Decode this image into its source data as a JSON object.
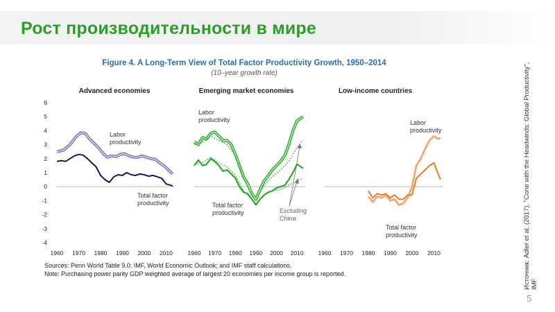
{
  "slide": {
    "title": "Рост производительности в мире",
    "page_number": "5",
    "source_note": "Источник: Adler et al. (2017). \"Cone with the Headwinds: Global Productivity\", IMF"
  },
  "figure": {
    "title": "Figure 4. A Long-Term View of Total Factor Productivity Growth, 1950–2014",
    "subtitle": "(10–year growth rate)",
    "sources": "Sources: Penn World Table 9.0; IMF, World Economic Outlook; and IMF staff calculations.",
    "note": "Note: Purchasing power parity GDP weighted average of largest 20 economies per income group is reported."
  },
  "colors": {
    "title_green": "#2e9e2b",
    "figure_title_blue": "#2d6cb5",
    "advanced_labor": "#7b73b3",
    "advanced_tfp": "#1a1466",
    "emerging": "#2ea82e",
    "lowincome_labor": "#f4a671",
    "lowincome_tfp": "#ea7a26"
  },
  "chart_data": [
    {
      "type": "line",
      "title": "Advanced economies",
      "x_ticks": [
        "1960",
        "1970",
        "1980",
        "1990",
        "2000",
        "2010"
      ],
      "y_ticks": [
        "6",
        "5",
        "4",
        "3",
        "2",
        "1",
        "0",
        "-1",
        "-2",
        "-3",
        "-4"
      ],
      "xlim": [
        1960,
        2014
      ],
      "ylim": [
        -4,
        6
      ],
      "series": [
        {
          "name": "Labor productivity",
          "x": [
            1960,
            1963,
            1966,
            1969,
            1971,
            1973,
            1975,
            1977,
            1979,
            1981,
            1983,
            1985,
            1987,
            1989,
            1991,
            1993,
            1995,
            1997,
            1999,
            2001,
            2003,
            2005,
            2007,
            2009,
            2011,
            2013
          ],
          "y": [
            2.5,
            2.6,
            3.0,
            3.6,
            3.85,
            3.8,
            3.4,
            3.1,
            2.8,
            2.4,
            2.1,
            2.2,
            2.15,
            2.3,
            2.35,
            2.2,
            2.1,
            2.1,
            2.2,
            2.1,
            2.0,
            1.95,
            1.7,
            1.5,
            1.2,
            0.9
          ]
        },
        {
          "name": "Total factor productivity",
          "x": [
            1960,
            1962,
            1964,
            1966,
            1968,
            1970,
            1972,
            1974,
            1976,
            1978,
            1980,
            1982,
            1984,
            1986,
            1988,
            1990,
            1992,
            1994,
            1996,
            1998,
            2000,
            2002,
            2004,
            2006,
            2008,
            2010,
            2013
          ],
          "y": [
            1.8,
            1.85,
            1.8,
            2.0,
            2.2,
            2.3,
            2.25,
            2.0,
            1.7,
            1.4,
            0.8,
            0.5,
            0.3,
            0.7,
            0.85,
            0.8,
            1.0,
            0.85,
            0.8,
            0.9,
            0.85,
            0.75,
            0.8,
            0.7,
            0.6,
            0.2,
            0.05
          ]
        }
      ]
    },
    {
      "type": "line",
      "title": "Emerging market economies",
      "x_ticks": [
        "1960",
        "1970",
        "1980",
        "1990",
        "2000",
        "2010"
      ],
      "xlim": [
        1960,
        2014
      ],
      "ylim": [
        -4,
        6
      ],
      "series": [
        {
          "name": "Labor productivity",
          "x": [
            1960,
            1962,
            1964,
            1966,
            1968,
            1970,
            1972,
            1974,
            1976,
            1978,
            1980,
            1982,
            1984,
            1986,
            1988,
            1990,
            1992,
            1994,
            1996,
            1998,
            2000,
            2002,
            2004,
            2006,
            2008,
            2010,
            2013
          ],
          "y": [
            3.2,
            3.0,
            3.5,
            3.4,
            3.8,
            3.9,
            3.6,
            3.3,
            3.3,
            3.0,
            2.3,
            1.5,
            0.7,
            0.2,
            -0.5,
            -0.9,
            -0.2,
            0.4,
            0.8,
            1.2,
            1.5,
            1.8,
            2.2,
            3.0,
            4.0,
            4.7,
            5.0
          ]
        },
        {
          "name": "Total factor productivity",
          "x": [
            1960,
            1962,
            1964,
            1966,
            1968,
            1970,
            1972,
            1974,
            1976,
            1978,
            1980,
            1982,
            1984,
            1986,
            1988,
            1990,
            1992,
            1994,
            1996,
            1998,
            2000,
            2002,
            2004,
            2006,
            2008,
            2010,
            2013
          ],
          "y": [
            1.5,
            1.9,
            1.5,
            1.6,
            2.0,
            1.8,
            1.5,
            1.1,
            1.2,
            0.9,
            0.6,
            0.0,
            -0.4,
            -0.5,
            -0.9,
            -1.3,
            -0.9,
            -0.6,
            -0.4,
            -0.3,
            -0.1,
            0.0,
            0.1,
            0.5,
            1.0,
            1.6,
            1.3
          ]
        },
        {
          "name": "Excluding China (labor productivity)",
          "x": [
            1960,
            1964,
            1968,
            1972,
            1976,
            1980,
            1984,
            1988,
            1990,
            1994,
            1998,
            2002,
            2006,
            2010,
            2013
          ],
          "y": [
            3.0,
            3.2,
            3.6,
            3.3,
            3.0,
            2.2,
            0.6,
            -0.6,
            -1.0,
            0.1,
            0.7,
            1.2,
            1.8,
            2.8,
            3.3
          ]
        },
        {
          "name": "Excluding China (total factor productivity)",
          "x": [
            1960,
            1964,
            1968,
            1972,
            1976,
            1980,
            1984,
            1988,
            1990,
            1994,
            1998,
            2002,
            2006,
            2010,
            2013
          ],
          "y": [
            1.6,
            1.7,
            2.1,
            1.7,
            1.4,
            0.8,
            -0.3,
            -0.9,
            -1.2,
            -0.6,
            -0.3,
            -0.2,
            0.1,
            0.4,
            0.6
          ]
        }
      ]
    },
    {
      "type": "line",
      "title": "Low-income countries",
      "x_ticks": [
        "1960",
        "1970",
        "1980",
        "1990",
        "2000",
        "2010"
      ],
      "xlim": [
        1960,
        2014
      ],
      "ylim": [
        -4,
        6
      ],
      "series": [
        {
          "name": "Labor productivity",
          "x": [
            1980,
            1982,
            1984,
            1986,
            1988,
            1990,
            1992,
            1994,
            1996,
            1998,
            2000,
            2002,
            2004,
            2006,
            2008,
            2010,
            2012,
            2013
          ],
          "y": [
            -0.7,
            -1.1,
            -0.7,
            -0.8,
            -0.6,
            -1.0,
            -0.9,
            -1.3,
            -1.2,
            -0.8,
            0.0,
            1.5,
            2.0,
            2.7,
            3.3,
            3.6,
            3.4,
            3.5
          ]
        },
        {
          "name": "Total factor productivity",
          "x": [
            1980,
            1982,
            1984,
            1986,
            1988,
            1990,
            1992,
            1994,
            1996,
            1998,
            2000,
            2002,
            2004,
            2006,
            2008,
            2010,
            2012,
            2013
          ],
          "y": [
            -0.3,
            -0.8,
            -0.5,
            -0.6,
            -0.5,
            -0.8,
            -0.6,
            -0.9,
            -0.9,
            -0.6,
            -0.6,
            0.6,
            0.9,
            1.2,
            1.5,
            1.7,
            0.9,
            0.5
          ]
        }
      ]
    }
  ],
  "annotations": {
    "adv_labor": [
      "Labor",
      "productivity"
    ],
    "adv_tfp": [
      "Total factor",
      "productivity"
    ],
    "em_labor": [
      "Labor",
      "productivity"
    ],
    "em_tfp": [
      "Total factor",
      "productivity"
    ],
    "em_excl": [
      "Excluding",
      "China"
    ],
    "li_labor": [
      "Labor",
      "productivity"
    ],
    "li_tfp": [
      "Total factor",
      "productivity"
    ]
  }
}
